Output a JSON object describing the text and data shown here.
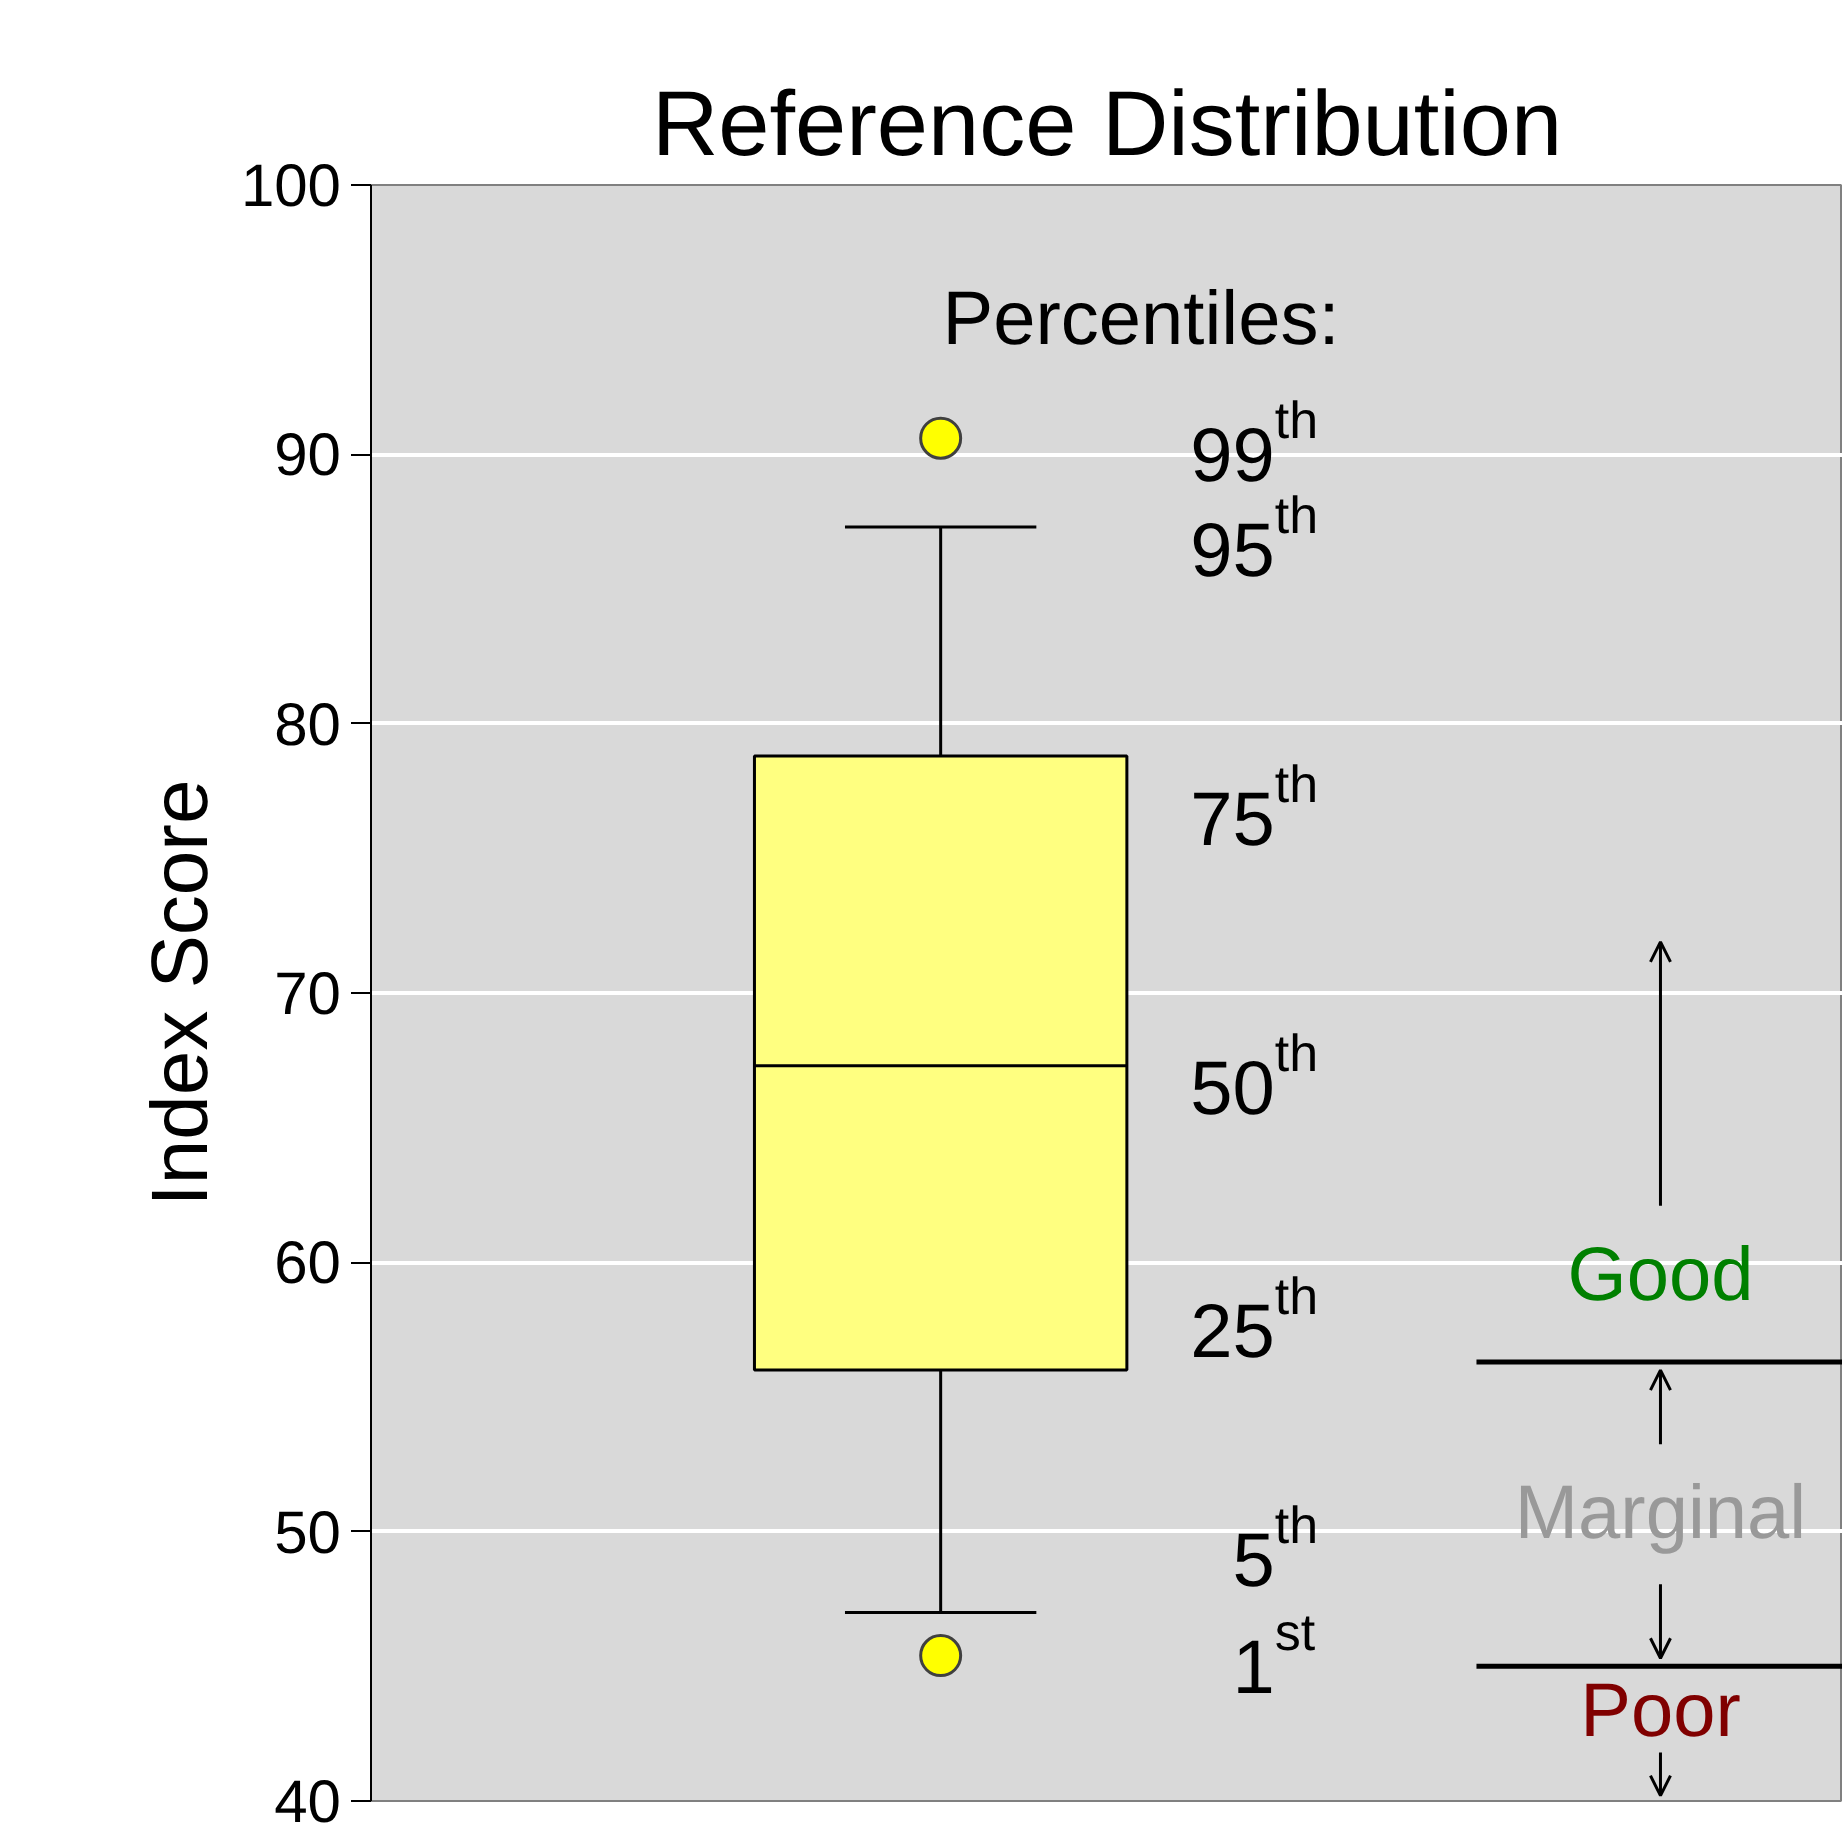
{
  "chart_data": {
    "type": "box",
    "title": "Reference Distribution",
    "ylabel": "Index Score",
    "categories": [
      null
    ],
    "boxes": [
      {
        "low": 47.0,
        "q1": 56.0,
        "median": 67.3,
        "q3": 78.8,
        "high": 87.3,
        "outliers": [
          90.6,
          45.4
        ]
      }
    ],
    "color": "#ffff80",
    "ylim": [
      40,
      100
    ],
    "yticks": [
      40,
      50,
      60,
      70,
      80,
      90,
      100
    ],
    "grid": "y",
    "tick_labels": "y",
    "ref_lines": [
      {
        "axis": "y",
        "value": 56.3,
        "label": "Good"
      },
      {
        "axis": "y",
        "value": 45.0,
        "label": "Poor"
      }
    ],
    "annotations": [
      "Percentiles:",
      "99$^{th}$",
      "95$^{th}$",
      "75$^{th}$",
      "50$^{th}$",
      "25$^{th}$",
      "5$^{th}$",
      "1$^{st}$",
      "Marginal"
    ]
  }
}
